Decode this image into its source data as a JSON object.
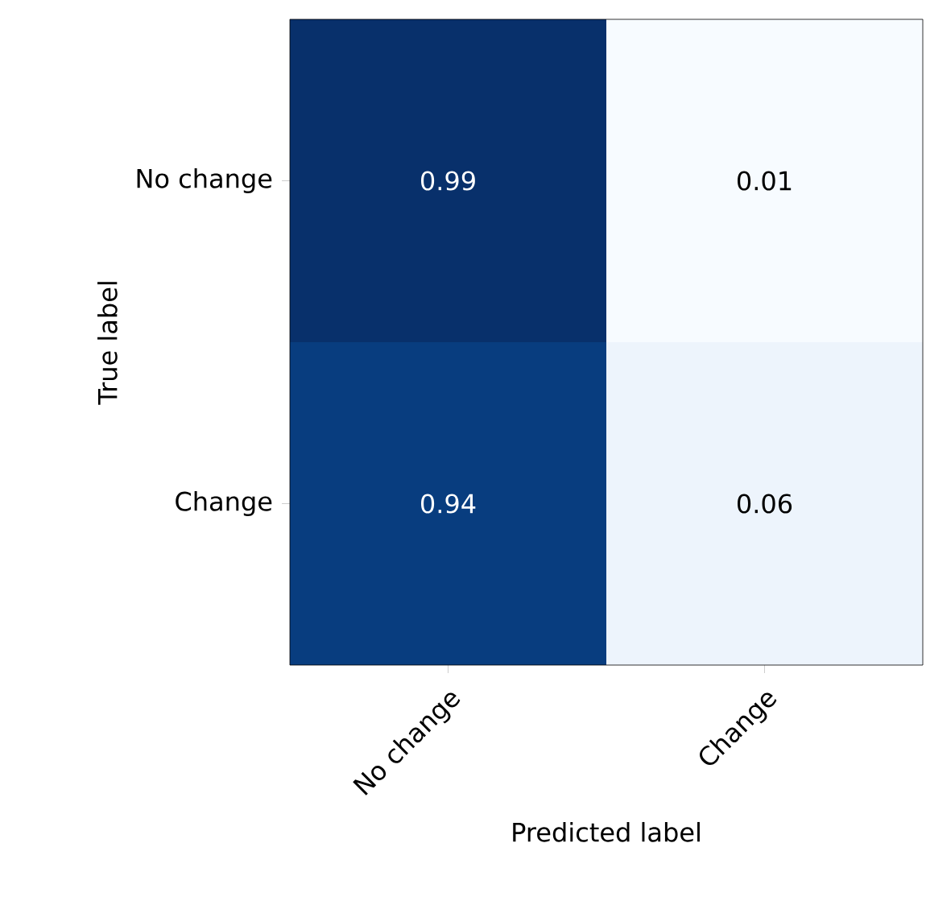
{
  "chart_data": {
    "type": "heatmap",
    "xlabel": "Predicted label",
    "ylabel": "True label",
    "categories": [
      "No change",
      "Change"
    ],
    "y_categories": [
      "No change",
      "Change"
    ],
    "cells": [
      [
        0.99,
        0.01
      ],
      [
        0.94,
        0.06
      ]
    ],
    "cell_labels": [
      [
        "0.99",
        "0.01"
      ],
      [
        "0.94",
        "0.06"
      ]
    ],
    "data_labels": true
  }
}
